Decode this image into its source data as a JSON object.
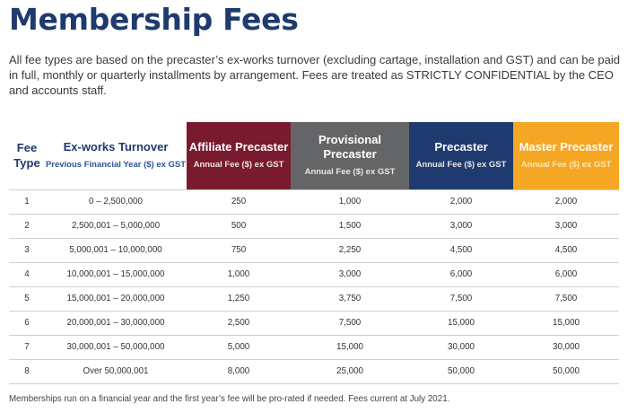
{
  "page": {
    "title": "Membership Fees",
    "intro": "All fee types are based on the precaster’s ex-works turnover (excluding cartage, installation and GST) and can be paid in full, monthly or quarterly installments by arrangement. Fees are treated as STRICTLY CONFIDENTIAL by the CEO and accounts staff.",
    "footnote": "Memberships run on a financial year and the first year’s fee will be pro-rated if needed. Fees current at July 2021."
  },
  "table": {
    "fee_type_header_line1": "Fee",
    "fee_type_header_line2": "Type",
    "turnover_header": "Ex-works Turnover",
    "turnover_subheader": "Previous Financial Year ($) ex GST",
    "tiers": [
      {
        "name": "Affiliate Precaster",
        "sub": "Annual Fee ($) ex GST",
        "color": "#7a1a2e",
        "sub_color": "#e7e7e7"
      },
      {
        "name": "Provisional Precaster",
        "sub": "Annual Fee ($) ex GST",
        "color": "#646567",
        "sub_color": "#e7e7e7"
      },
      {
        "name": "Precaster",
        "sub": "Annual Fee ($) ex GST",
        "color": "#1f3a6e",
        "sub_color": "#e7e7e7"
      },
      {
        "name": "Master Precaster",
        "sub": "Annual Fee ($) ex GST",
        "color": "#f5a623",
        "sub_color": "#fde7b8"
      }
    ],
    "rows": [
      {
        "type": "1",
        "turnover": "0 – 2,500,000",
        "affiliate": "250",
        "provisional": "1,000",
        "precaster": "2,000",
        "master": "2,000"
      },
      {
        "type": "2",
        "turnover": "2,500,001 – 5,000,000",
        "affiliate": "500",
        "provisional": "1,500",
        "precaster": "3,000",
        "master": "3,000"
      },
      {
        "type": "3",
        "turnover": "5,000,001 – 10,000,000",
        "affiliate": "750",
        "provisional": "2,250",
        "precaster": "4,500",
        "master": "4,500"
      },
      {
        "type": "4",
        "turnover": "10,000,001 – 15,000,000",
        "affiliate": "1,000",
        "provisional": "3,000",
        "precaster": "6,000",
        "master": "6,000"
      },
      {
        "type": "5",
        "turnover": "15,000,001 – 20,000,000",
        "affiliate": "1,250",
        "provisional": "3,750",
        "precaster": "7,500",
        "master": "7,500"
      },
      {
        "type": "6",
        "turnover": "20,000,001 – 30,000,000",
        "affiliate": "2,500",
        "provisional": "7,500",
        "precaster": "15,000",
        "master": "15,000"
      },
      {
        "type": "7",
        "turnover": "30,000,001 – 50,000,000",
        "affiliate": "5,000",
        "provisional": "15,000",
        "precaster": "30,000",
        "master": "30,000"
      },
      {
        "type": "8",
        "turnover": "Over 50,000,001",
        "affiliate": "8,000",
        "provisional": "25,000",
        "precaster": "50,000",
        "master": "50,000"
      }
    ]
  }
}
